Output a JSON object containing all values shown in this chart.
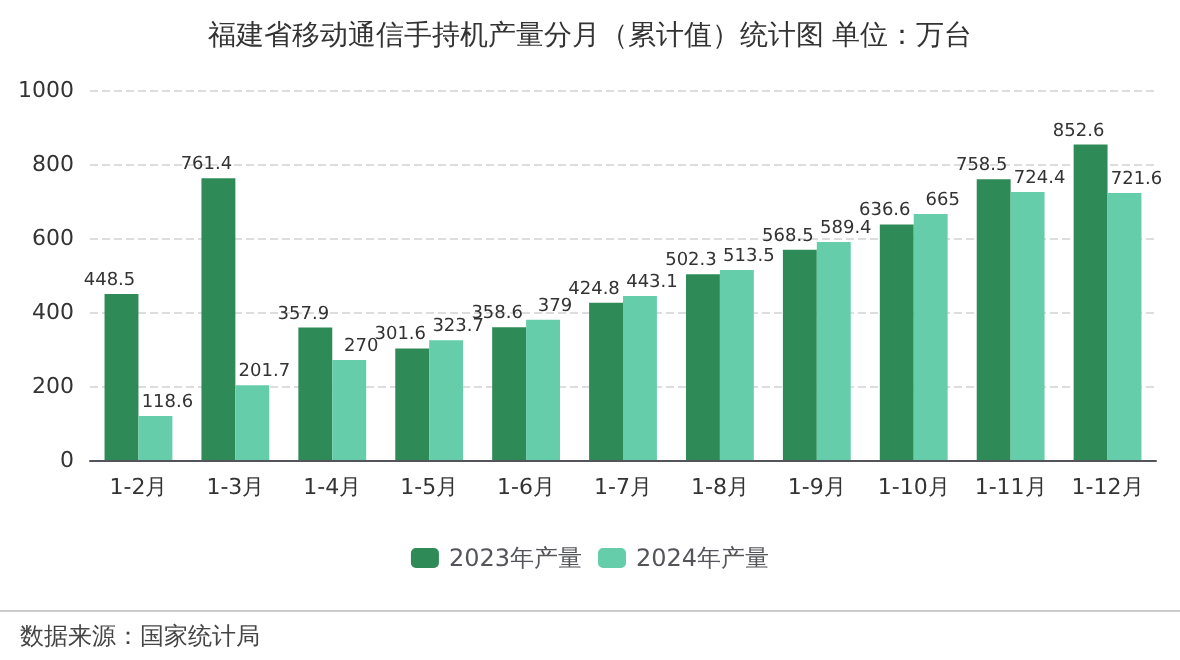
{
  "chart_data": {
    "type": "bar",
    "title": "福建省移动通信手持机产量分月（累计值）统计图 单位：万台",
    "categories": [
      "1-2月",
      "1-3月",
      "1-4月",
      "1-5月",
      "1-6月",
      "1-7月",
      "1-8月",
      "1-9月",
      "1-10月",
      "1-11月",
      "1-12月"
    ],
    "series": [
      {
        "name": "2023年产量",
        "color": "#2e8b57",
        "values": [
          448.5,
          761.4,
          357.9,
          301.6,
          358.6,
          424.8,
          502.3,
          568.5,
          636.6,
          758.5,
          852.6
        ]
      },
      {
        "name": "2024年产量",
        "color": "#66cdaa",
        "values": [
          118.6,
          201.7,
          270,
          323.7,
          379,
          443.1,
          513.5,
          589.4,
          665,
          724.4,
          721.6
        ]
      }
    ],
    "ylim": [
      0,
      1000
    ],
    "yticks": [
      0,
      200,
      400,
      600,
      800,
      1000
    ],
    "grid": "y",
    "legend": "bottom",
    "data_labels": true,
    "annotations": [
      "数据来源：国家统计局"
    ]
  }
}
